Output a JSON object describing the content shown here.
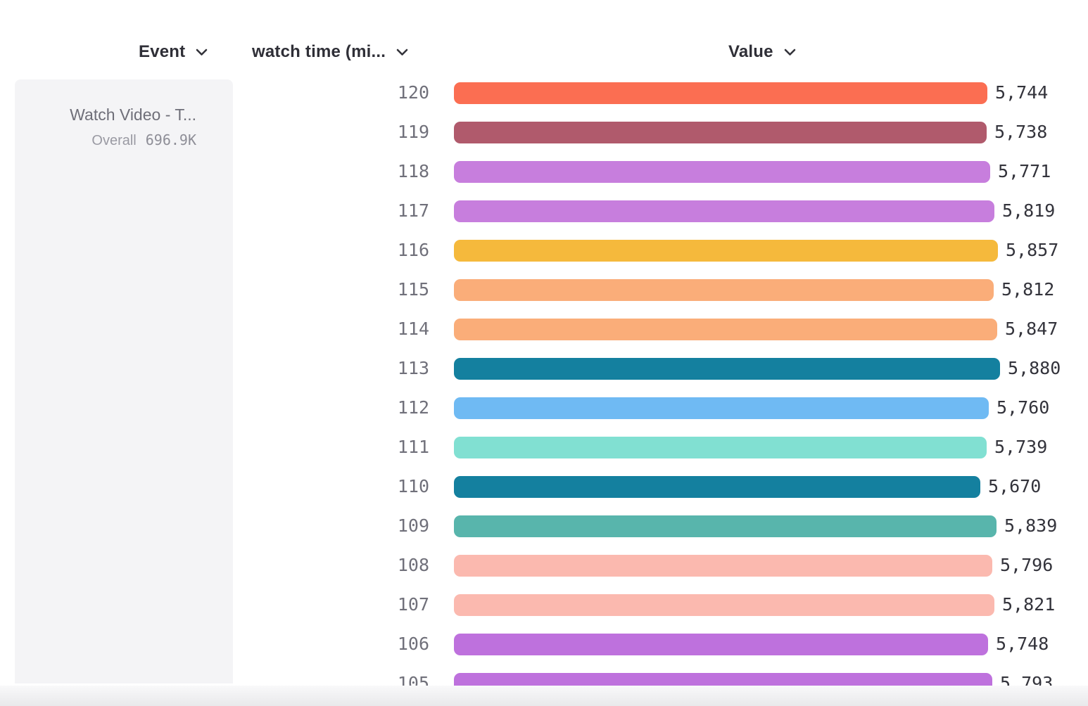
{
  "header": {
    "columns": [
      {
        "id": "event",
        "label": "Event"
      },
      {
        "id": "watch-time",
        "label": "watch time (mi..."
      },
      {
        "id": "value",
        "label": "Value"
      }
    ]
  },
  "event_card": {
    "title": "Watch Video - T...",
    "overall_label": "Overall",
    "overall_value": "696.9K"
  },
  "chart_data": {
    "type": "bar",
    "orientation": "horizontal",
    "title": "",
    "xlabel": "Value",
    "ylabel": "watch time (mi...",
    "categories": [
      "120",
      "119",
      "118",
      "117",
      "116",
      "115",
      "114",
      "113",
      "112",
      "111",
      "110",
      "109",
      "108",
      "107",
      "106",
      "105"
    ],
    "values": [
      5744,
      5738,
      5771,
      5819,
      5857,
      5812,
      5847,
      5880,
      5760,
      5739,
      5670,
      5839,
      5796,
      5821,
      5748,
      5793
    ],
    "value_labels": [
      "5,744",
      "5,738",
      "5,771",
      "5,819",
      "5,857",
      "5,812",
      "5,847",
      "5,880",
      "5,760",
      "5,739",
      "5,670",
      "5,839",
      "5,796",
      "5,821",
      "5,748",
      "5,793"
    ],
    "colors": [
      "#FB6E52",
      "#B05A6C",
      "#C77EDD",
      "#C77EDD",
      "#F5B93C",
      "#FAAD79",
      "#FAAD79",
      "#14809F",
      "#6FBAF3",
      "#81E0D2",
      "#14809F",
      "#58B5AC",
      "#FBB9AF",
      "#FBB9AF",
      "#BE71DD",
      "#BE71DD"
    ],
    "xlim": [
      0,
      5880
    ],
    "grid": false,
    "legend": "none"
  },
  "icons": {
    "chevron_color": "#33333a"
  }
}
